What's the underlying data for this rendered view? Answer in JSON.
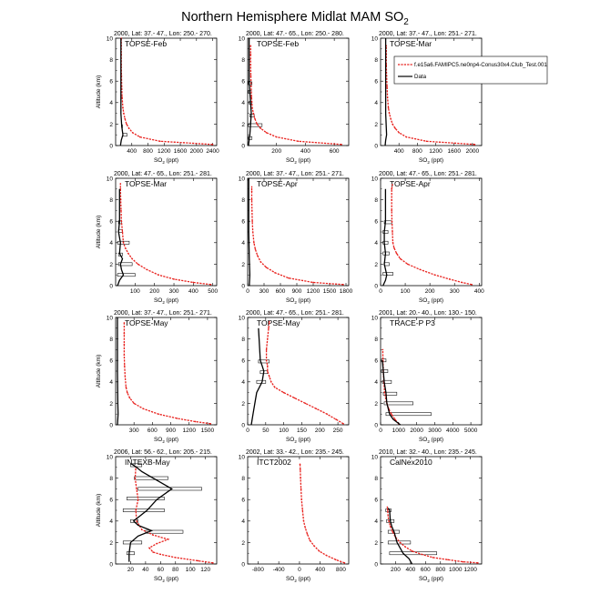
{
  "figure": {
    "title": "Northern Hemisphere Midlat MAM SO",
    "title_sub": "2",
    "xlabel_main": "SO",
    "xlabel_sub": "2",
    "xlabel_unit": " (ppt)",
    "ylabel": "Altitude (km)"
  },
  "legend": {
    "model_label": "f.e15a6.FAMIPC5.ne0np4-Conus30x4.Club_Test.001",
    "data_label": "Data",
    "model_color": "#e8201c",
    "data_color": "#000000"
  },
  "chart_data": [
    {
      "type": "line",
      "header": "2000, Lat: 37.- 47., Lon: 250.- 270.",
      "campaign": "TOPSE-Feb",
      "xlim": [
        0,
        2500
      ],
      "ylim": [
        0,
        10
      ],
      "xticks": [
        400,
        800,
        1200,
        1600,
        2000,
        2400
      ],
      "yticks": [
        0,
        2,
        4,
        6,
        8,
        10
      ],
      "ylabel_visible": true,
      "model": {
        "x": [
          2400,
          1100,
          600,
          420,
          330,
          270,
          230,
          200,
          180,
          160,
          150,
          145,
          140,
          140,
          140,
          140
        ],
        "y": [
          0.1,
          0.4,
          0.8,
          1.2,
          1.6,
          2.0,
          2.5,
          3.0,
          3.5,
          4.5,
          5.5,
          6.5,
          7.5,
          8.5,
          9.3,
          10
        ]
      },
      "data": {
        "x": [
          120,
          140,
          180,
          150,
          130,
          130
        ],
        "y": [
          0,
          0.5,
          1.0,
          1.8,
          3.0,
          10
        ]
      },
      "boxes": [
        {
          "y": 1.0,
          "x0": 180,
          "x1": 280
        },
        {
          "y": 1.8,
          "x0": 150,
          "x1": 170
        }
      ]
    },
    {
      "type": "line",
      "header": "2000, Lat: 47.- 65., Lon: 250.- 280.",
      "campaign": "TOPSE-Feb",
      "xlim": [
        0,
        700
      ],
      "ylim": [
        0,
        10
      ],
      "xticks": [
        200,
        400,
        600
      ],
      "yticks": [
        0,
        2,
        4,
        6,
        8,
        10
      ],
      "ylabel_visible": false,
      "model": {
        "x": [
          650,
          350,
          200,
          130,
          90,
          65,
          50,
          40,
          32,
          27,
          24,
          22,
          21,
          21,
          21
        ],
        "y": [
          0.1,
          0.4,
          0.8,
          1.2,
          1.6,
          2.0,
          2.5,
          3.0,
          3.5,
          4.5,
          5.5,
          6.5,
          7.5,
          8.5,
          9.3
        ]
      },
      "data": {
        "x": [
          5,
          10,
          15,
          20,
          25,
          20,
          15,
          10,
          10
        ],
        "y": [
          0,
          0.5,
          1.0,
          2.0,
          3.0,
          4.0,
          5.0,
          6.0,
          10
        ]
      },
      "boxes": [
        {
          "y": 0.7,
          "x0": 5,
          "x1": 30
        },
        {
          "y": 1.9,
          "x0": 5,
          "x1": 100
        },
        {
          "y": 2.8,
          "x0": 15,
          "x1": 45
        },
        {
          "y": 4.0,
          "x0": 10,
          "x1": 30
        },
        {
          "y": 5.0,
          "x0": 5,
          "x1": 25
        },
        {
          "y": 5.8,
          "x0": 5,
          "x1": 30
        }
      ]
    },
    {
      "type": "line",
      "header": "2000, Lat: 37.- 47., Lon: 251.- 271.",
      "campaign": "TOPSE-Mar",
      "xlim": [
        0,
        2200
      ],
      "ylim": [
        0,
        10
      ],
      "xticks": [
        400,
        800,
        1200,
        1600,
        2000
      ],
      "yticks": [
        0,
        2,
        4,
        6,
        8,
        10
      ],
      "ylabel_visible": false,
      "model": {
        "x": [
          2050,
          1000,
          560,
          400,
          320,
          260,
          220,
          190,
          170,
          150,
          140,
          130,
          125,
          125,
          125
        ],
        "y": [
          0.1,
          0.4,
          0.8,
          1.2,
          1.6,
          2.0,
          2.5,
          3.0,
          3.5,
          4.5,
          5.5,
          6.5,
          7.5,
          8.5,
          9.3
        ]
      },
      "data": {
        "x": [
          100,
          110,
          130,
          120,
          110,
          110
        ],
        "y": [
          0,
          0.5,
          1.0,
          2.0,
          3.0,
          10
        ]
      },
      "boxes": []
    },
    {
      "type": "line",
      "header": "2000, Lat: 47.- 65., Lon: 251.- 281.",
      "campaign": "TOPSE-Mar",
      "xlim": [
        0,
        520
      ],
      "ylim": [
        0,
        10
      ],
      "xticks": [
        100,
        200,
        300,
        400,
        500
      ],
      "yticks": [
        0,
        2,
        4,
        6,
        8,
        10
      ],
      "ylabel_visible": true,
      "model": {
        "x": [
          490,
          400,
          300,
          220,
          160,
          115,
          85,
          65,
          50,
          40,
          35,
          30,
          28,
          26,
          25,
          25
        ],
        "y": [
          0.1,
          0.3,
          0.6,
          1.0,
          1.5,
          2.0,
          2.5,
          3.0,
          3.5,
          4.0,
          5.0,
          6.0,
          7.0,
          8.0,
          9.0,
          9.5
        ]
      },
      "data": {
        "x": [
          10,
          20,
          40,
          30,
          25,
          35,
          20,
          25,
          15,
          20,
          20
        ],
        "y": [
          0,
          0.5,
          1.0,
          1.5,
          2.0,
          2.5,
          3.0,
          4.0,
          5.0,
          6.0,
          9.0
        ]
      },
      "boxes": [
        {
          "y": 1.0,
          "x0": 10,
          "x1": 100
        },
        {
          "y": 2.0,
          "x0": 15,
          "x1": 85
        },
        {
          "y": 2.9,
          "x0": 15,
          "x1": 35
        },
        {
          "y": 4.0,
          "x0": 10,
          "x1": 70
        },
        {
          "y": 5.1,
          "x0": 15,
          "x1": 35
        },
        {
          "y": 5.9,
          "x0": 15,
          "x1": 30
        }
      ]
    },
    {
      "type": "line",
      "header": "2000, Lat: 37.- 47., Lon: 251.- 271.",
      "campaign": "TOPSE-Apr",
      "xlim": [
        0,
        1850
      ],
      "ylim": [
        0,
        10
      ],
      "xticks": [
        0,
        300,
        600,
        900,
        1200,
        1500,
        1800
      ],
      "yticks": [
        0,
        2,
        4,
        6,
        8,
        10
      ],
      "ylabel_visible": false,
      "model": {
        "x": [
          1750,
          1200,
          750,
          500,
          340,
          240,
          180,
          140,
          115,
          95,
          85,
          80,
          75,
          75,
          75
        ],
        "y": [
          0.1,
          0.3,
          0.7,
          1.2,
          1.7,
          2.2,
          2.8,
          3.4,
          4.0,
          5.0,
          6.0,
          7.0,
          8.0,
          8.8,
          9.2
        ]
      },
      "data": {
        "x": [
          30,
          40,
          30,
          20,
          20
        ],
        "y": [
          0,
          1.0,
          2.5,
          5.0,
          10
        ]
      },
      "boxes": []
    },
    {
      "type": "line",
      "header": "2000, Lat: 47.- 65., Lon: 251.- 281.",
      "campaign": "TOPSE-Apr",
      "xlim": [
        0,
        410
      ],
      "ylim": [
        0,
        10
      ],
      "xticks": [
        0,
        100,
        200,
        300,
        400
      ],
      "yticks": [
        0,
        2,
        4,
        6,
        8,
        10
      ],
      "ylabel_visible": false,
      "model": {
        "x": [
          370,
          330,
          280,
          220,
          160,
          110,
          80,
          65,
          55,
          50,
          48,
          46,
          45,
          45,
          45,
          48
        ],
        "y": [
          0.1,
          0.3,
          0.6,
          1.0,
          1.5,
          2.0,
          2.5,
          3.0,
          3.5,
          4.0,
          5.0,
          6.0,
          7.0,
          8.0,
          9.0,
          9.4
        ]
      },
      "data": {
        "x": [
          10,
          20,
          25,
          15,
          20,
          15,
          15,
          20,
          20
        ],
        "y": [
          0,
          0.5,
          1.0,
          2.0,
          3.0,
          4.0,
          5.0,
          6.0,
          9.0
        ]
      },
      "boxes": [
        {
          "y": 1.1,
          "x0": 10,
          "x1": 50
        },
        {
          "y": 2.0,
          "x0": 15,
          "x1": 35
        },
        {
          "y": 3.0,
          "x0": 10,
          "x1": 35
        },
        {
          "y": 4.0,
          "x0": 10,
          "x1": 30
        },
        {
          "y": 5.0,
          "x0": 10,
          "x1": 30
        },
        {
          "y": 5.9,
          "x0": 15,
          "x1": 45
        }
      ]
    },
    {
      "type": "line",
      "header": "2000, Lat: 37.- 47., Lon: 251.- 271.",
      "campaign": "TOPSE-May",
      "xlim": [
        0,
        1650
      ],
      "ylim": [
        0,
        10
      ],
      "xticks": [
        300,
        600,
        900,
        1200,
        1500
      ],
      "yticks": [
        0,
        2,
        4,
        6,
        8,
        10
      ],
      "ylabel_visible": true,
      "model": {
        "x": [
          1550,
          1300,
          1000,
          700,
          450,
          300,
          230,
          190,
          170,
          155,
          145,
          140,
          140,
          140,
          140
        ],
        "y": [
          0.1,
          0.3,
          0.6,
          1.0,
          1.5,
          2.0,
          2.5,
          3.0,
          3.5,
          4.5,
          5.5,
          6.5,
          7.5,
          8.5,
          9.5
        ]
      },
      "data": {
        "x": [
          30,
          40,
          35,
          30,
          30
        ],
        "y": [
          0,
          1.0,
          2.0,
          5.0,
          10
        ]
      },
      "boxes": []
    },
    {
      "type": "line",
      "header": "2000, Lat: 47.- 65., Lon: 251.- 281.",
      "campaign": "TOPSE-May",
      "xlim": [
        0,
        280
      ],
      "ylim": [
        0,
        10
      ],
      "xticks": [
        0,
        50,
        100,
        150,
        200,
        250
      ],
      "yticks": [
        0,
        2,
        4,
        6,
        8,
        10
      ],
      "ylabel_visible": false,
      "model": {
        "x": [
          265,
          245,
          220,
          190,
          160,
          130,
          100,
          75,
          65,
          60,
          55,
          55,
          52,
          52,
          55,
          58,
          60
        ],
        "y": [
          0.1,
          0.5,
          1.0,
          1.5,
          2.0,
          2.5,
          3.0,
          3.5,
          4.0,
          4.5,
          5.0,
          5.5,
          6.0,
          7.0,
          8.0,
          9.0,
          9.6
        ]
      },
      "data": {
        "x": [
          10,
          15,
          20,
          25,
          40,
          45,
          40,
          35,
          30
        ],
        "y": [
          0,
          1.0,
          2.0,
          3.0,
          4.0,
          5.0,
          5.5,
          6.0,
          9.0
        ]
      },
      "boxes": [
        {
          "y": 4.0,
          "x0": 25,
          "x1": 50
        },
        {
          "y": 4.9,
          "x0": 35,
          "x1": 55
        },
        {
          "y": 5.9,
          "x0": 30,
          "x1": 60
        }
      ]
    },
    {
      "type": "line",
      "header": "2001, Lat: 20.- 40., Lon: 130.- 150.",
      "campaign": "TRACE-P P3",
      "xlim": [
        0,
        5600
      ],
      "ylim": [
        0,
        10
      ],
      "xticks": [
        0,
        1000,
        2000,
        3000,
        4000,
        5000
      ],
      "yticks": [
        0,
        2,
        4,
        6,
        8,
        10
      ],
      "ylabel_visible": false,
      "model": {
        "x": [
          1000,
          800,
          600,
          450,
          350,
          280,
          220,
          180,
          150,
          130,
          120
        ],
        "y": [
          0.1,
          0.5,
          1.0,
          1.5,
          2.0,
          2.5,
          3.0,
          4.0,
          5.0,
          6.0,
          7.0
        ]
      },
      "data": {
        "x": [
          1100,
          700,
          500,
          350,
          300,
          200,
          150,
          100
        ],
        "y": [
          0,
          0.5,
          1.0,
          2.0,
          3.0,
          4.0,
          5.0,
          6.0
        ]
      },
      "boxes": [
        {
          "y": 1.0,
          "x0": 300,
          "x1": 2800
        },
        {
          "y": 2.0,
          "x0": 200,
          "x1": 1800
        },
        {
          "y": 2.9,
          "x0": 150,
          "x1": 900
        },
        {
          "y": 4.0,
          "x0": 100,
          "x1": 600
        },
        {
          "y": 5.0,
          "x0": 50,
          "x1": 400
        },
        {
          "y": 6.0,
          "x0": 50,
          "x1": 300
        }
      ]
    },
    {
      "type": "line",
      "header": "2006, Lat: 56.- 62., Lon: 205.- 215.",
      "campaign": "INTEXB-May",
      "xlim": [
        0,
        135
      ],
      "ylim": [
        0,
        10
      ],
      "xticks": [
        20,
        40,
        60,
        80,
        100,
        120
      ],
      "yticks": [
        0,
        2,
        4,
        6,
        8,
        10
      ],
      "ylabel_visible": true,
      "model": {
        "x": [
          130,
          110,
          80,
          60,
          50,
          45,
          55,
          70,
          50,
          35,
          28,
          27,
          30,
          28,
          26,
          27
        ],
        "y": [
          0.1,
          0.3,
          0.6,
          0.9,
          1.1,
          1.5,
          1.9,
          2.3,
          2.7,
          3.2,
          4.0,
          5.0,
          6.0,
          7.0,
          8.0,
          9.0
        ]
      },
      "data": {
        "x": [
          18,
          18,
          20,
          30,
          48,
          30,
          24,
          42,
          55,
          75,
          50,
          35,
          28,
          22
        ],
        "y": [
          0.2,
          1.0,
          2.0,
          2.6,
          3.1,
          3.6,
          4.0,
          5.0,
          6.0,
          7.0,
          8.0,
          8.6,
          9.0,
          9.3
        ]
      },
      "boxes": [
        {
          "y": 1.0,
          "x0": 15,
          "x1": 25
        },
        {
          "y": 2.0,
          "x0": 10,
          "x1": 35
        },
        {
          "y": 3.0,
          "x0": 40,
          "x1": 90
        },
        {
          "y": 4.0,
          "x0": 20,
          "x1": 30
        },
        {
          "y": 5.0,
          "x0": 10,
          "x1": 65
        },
        {
          "y": 6.1,
          "x0": 15,
          "x1": 65
        },
        {
          "y": 7.0,
          "x0": 30,
          "x1": 115
        },
        {
          "y": 8.0,
          "x0": 25,
          "x1": 70
        },
        {
          "y": 9.2,
          "x0": 20,
          "x1": 35
        }
      ]
    },
    {
      "type": "line",
      "header": "2002, Lat: 33.- 42., Lon: 235.- 245.",
      "campaign": "ITCT2002",
      "xlim": [
        -1000,
        950
      ],
      "ylim": [
        0,
        10
      ],
      "xticks": [
        -800,
        -400,
        0,
        400,
        800
      ],
      "yticks": [
        0,
        2,
        4,
        6,
        8,
        10
      ],
      "ylabel_visible": false,
      "model": {
        "x": [
          870,
          700,
          520,
          380,
          280,
          200,
          150,
          110,
          80,
          60,
          40,
          30,
          20,
          15,
          10
        ],
        "y": [
          0.1,
          0.4,
          0.8,
          1.2,
          1.7,
          2.2,
          2.8,
          3.4,
          4.0,
          5.0,
          6.0,
          7.0,
          8.0,
          8.8,
          9.3
        ]
      },
      "data": {
        "x": [],
        "y": []
      },
      "boxes": []
    },
    {
      "type": "line",
      "header": "2010, Lat: 32.- 40., Lon: 235.- 245.",
      "campaign": "CalNex2010",
      "xlim": [
        0,
        1350
      ],
      "ylim": [
        0,
        10
      ],
      "xticks": [
        200,
        400,
        600,
        800,
        1000,
        1200
      ],
      "yticks": [
        0,
        2,
        4,
        6,
        8,
        10
      ],
      "ylabel_visible": false,
      "model": {
        "x": [
          1300,
          1100,
          900,
          700,
          550,
          420,
          330,
          260,
          200,
          160,
          130,
          110,
          100,
          95,
          90
        ],
        "y": [
          0.1,
          0.2,
          0.4,
          0.6,
          0.9,
          1.2,
          1.6,
          2.0,
          2.5,
          3.0,
          3.5,
          4.0,
          4.5,
          5.0,
          5.3
        ]
      },
      "data": {
        "x": [
          420,
          380,
          300,
          220,
          180,
          150,
          130,
          120,
          100
        ],
        "y": [
          0,
          0.5,
          1.0,
          2.0,
          3.0,
          3.5,
          4.0,
          5.0,
          5.2
        ]
      },
      "boxes": [
        {
          "y": 1.0,
          "x0": 120,
          "x1": 750
        },
        {
          "y": 2.0,
          "x0": 100,
          "x1": 400
        },
        {
          "y": 3.0,
          "x0": 100,
          "x1": 250
        },
        {
          "y": 4.0,
          "x0": 80,
          "x1": 180
        },
        {
          "y": 5.0,
          "x0": 70,
          "x1": 140
        }
      ]
    }
  ]
}
